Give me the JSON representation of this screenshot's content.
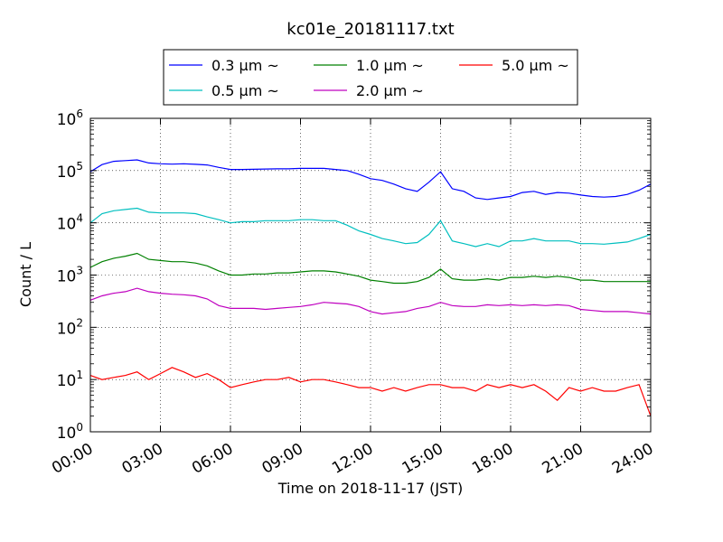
{
  "chart_data": {
    "type": "line",
    "title": "kc01e_20181117.txt",
    "xlabel": "Time on 2018-11-17 (JST)",
    "ylabel": "Count / L",
    "y_scale": "log",
    "ylim": [
      1,
      1000000
    ],
    "y_ticks": [
      {
        "value": 1,
        "base": "10",
        "exp": "0"
      },
      {
        "value": 10,
        "base": "10",
        "exp": "1"
      },
      {
        "value": 100,
        "base": "10",
        "exp": "2"
      },
      {
        "value": 1000,
        "base": "10",
        "exp": "3"
      },
      {
        "value": 10000,
        "base": "10",
        "exp": "4"
      },
      {
        "value": 100000,
        "base": "10",
        "exp": "5"
      },
      {
        "value": 1000000,
        "base": "10",
        "exp": "6"
      }
    ],
    "xlim": [
      "00:00",
      "24:00"
    ],
    "x_ticks": [
      "00:00",
      "03:00",
      "06:00",
      "09:00",
      "12:00",
      "15:00",
      "18:00",
      "21:00",
      "24:00"
    ],
    "grid": true,
    "legend_position": "top-center",
    "x": [
      "00:00",
      "00:30",
      "01:00",
      "01:30",
      "02:00",
      "02:30",
      "03:00",
      "03:30",
      "04:00",
      "04:30",
      "05:00",
      "05:30",
      "06:00",
      "06:30",
      "07:00",
      "07:30",
      "08:00",
      "08:30",
      "09:00",
      "09:30",
      "10:00",
      "10:30",
      "11:00",
      "11:30",
      "12:00",
      "12:30",
      "13:00",
      "13:30",
      "14:00",
      "14:30",
      "15:00",
      "15:30",
      "16:00",
      "16:30",
      "17:00",
      "17:30",
      "18:00",
      "18:30",
      "19:00",
      "19:30",
      "20:00",
      "20:30",
      "21:00",
      "21:30",
      "22:00",
      "22:30",
      "23:00",
      "23:30",
      "24:00"
    ],
    "series": [
      {
        "name": "0.3 µm ~",
        "color": "#0000ff",
        "values": [
          95000,
          130000,
          150000,
          155000,
          160000,
          140000,
          135000,
          133000,
          135000,
          132000,
          128000,
          115000,
          105000,
          105000,
          106000,
          107000,
          108000,
          108000,
          110000,
          110000,
          110000,
          105000,
          100000,
          85000,
          70000,
          65000,
          55000,
          45000,
          40000,
          60000,
          95000,
          45000,
          40000,
          30000,
          28000,
          30000,
          32000,
          38000,
          40000,
          35000,
          38000,
          37000,
          34000,
          32000,
          31000,
          32000,
          35000,
          42000,
          55000
        ]
      },
      {
        "name": "0.5 µm ~",
        "color": "#00bfbf",
        "values": [
          10000,
          15000,
          17000,
          18000,
          19000,
          16000,
          15500,
          15500,
          15500,
          15000,
          13000,
          11500,
          10000,
          10500,
          10500,
          11000,
          11000,
          11000,
          11500,
          11500,
          11000,
          11000,
          9000,
          7000,
          6000,
          5000,
          4500,
          4000,
          4200,
          6000,
          11000,
          4500,
          4000,
          3500,
          4000,
          3500,
          4500,
          4500,
          5000,
          4500,
          4500,
          4500,
          4000,
          4000,
          3900,
          4100,
          4300,
          5000,
          6000
        ]
      },
      {
        "name": "1.0 µm ~",
        "color": "#008000",
        "values": [
          1400,
          1800,
          2100,
          2300,
          2600,
          2000,
          1900,
          1800,
          1800,
          1700,
          1500,
          1200,
          1000,
          1000,
          1050,
          1050,
          1100,
          1100,
          1150,
          1200,
          1200,
          1150,
          1050,
          950,
          800,
          750,
          700,
          700,
          750,
          900,
          1300,
          850,
          800,
          800,
          850,
          800,
          900,
          900,
          950,
          900,
          950,
          900,
          800,
          800,
          750,
          750,
          750,
          750,
          750
        ]
      },
      {
        "name": "2.0 µm ~",
        "color": "#bf00bf",
        "values": [
          330,
          400,
          450,
          480,
          560,
          480,
          450,
          430,
          420,
          400,
          350,
          260,
          230,
          230,
          230,
          220,
          230,
          240,
          250,
          270,
          300,
          290,
          280,
          250,
          200,
          180,
          190,
          200,
          230,
          250,
          300,
          260,
          250,
          250,
          270,
          260,
          270,
          260,
          270,
          260,
          270,
          260,
          220,
          210,
          200,
          200,
          200,
          190,
          180
        ]
      },
      {
        "name": "5.0 µm ~",
        "color": "#ff0000",
        "values": [
          12,
          10,
          11,
          12,
          14,
          10,
          13,
          17,
          14,
          11,
          13,
          10,
          7,
          8,
          9,
          10,
          10,
          11,
          9,
          10,
          10,
          9,
          8,
          7,
          7,
          6,
          7,
          6,
          7,
          8,
          8,
          7,
          7,
          6,
          8,
          7,
          8,
          7,
          8,
          6,
          4,
          7,
          6,
          7,
          6,
          6,
          7,
          8,
          2
        ]
      }
    ]
  }
}
